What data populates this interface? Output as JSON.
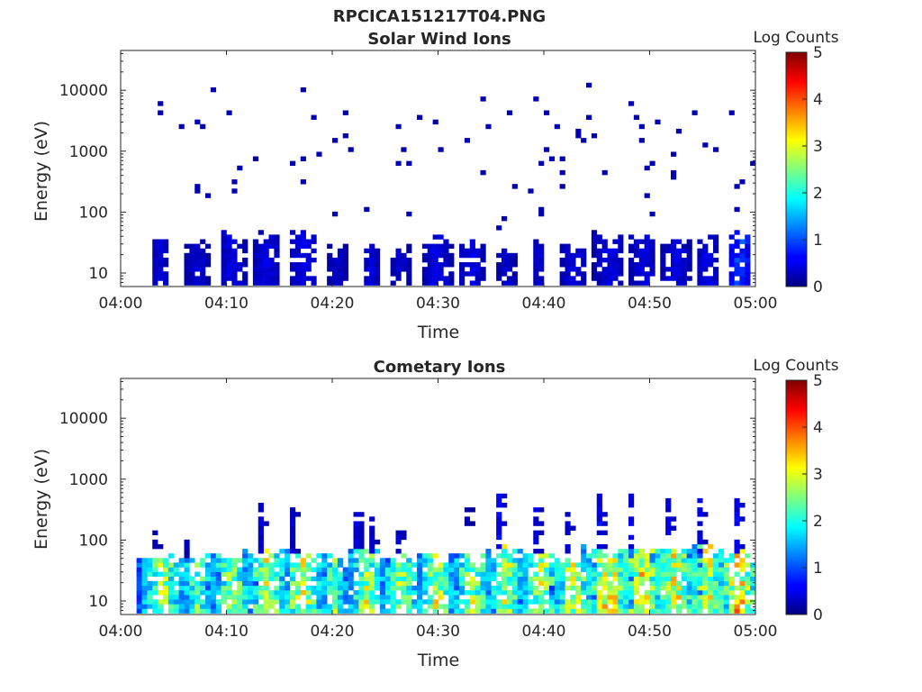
{
  "figure": {
    "title": "RPCICA151217T04.PNG"
  },
  "colorbar": {
    "label": "Log Counts",
    "ticks": [
      "0",
      "1",
      "2",
      "3",
      "4",
      "5"
    ],
    "range": [
      0,
      5
    ],
    "colormap": "jet"
  },
  "chart_data": [
    {
      "type": "heatmap",
      "title": "Solar Wind Ions",
      "xlabel": "Time",
      "ylabel": "Energy (eV)",
      "yscale": "log",
      "ylim": [
        6,
        45000
      ],
      "xlim_minutes": [
        0,
        60
      ],
      "x_tick_labels": [
        "04:00",
        "04:10",
        "04:20",
        "04:30",
        "04:40",
        "04:50",
        "05:00"
      ],
      "y_tick_labels": [
        "10",
        "100",
        "1000",
        "10000"
      ],
      "color_scale": "Log Counts",
      "x_units": "minutes after 04:00",
      "bursts": [
        {
          "t": 3.8,
          "w": 0.9,
          "emax": 30,
          "v": 0.3
        },
        {
          "t": 7.3,
          "w": 1.1,
          "emax": 25,
          "v": 0.3
        },
        {
          "t": 10.6,
          "w": 1.2,
          "emax": 35,
          "v": 0.35
        },
        {
          "t": 13.8,
          "w": 1.4,
          "emax": 35,
          "v": 0.35
        },
        {
          "t": 17.3,
          "w": 1.4,
          "emax": 38,
          "v": 0.35
        },
        {
          "t": 20.4,
          "w": 0.9,
          "emax": 22,
          "v": 0.3
        },
        {
          "t": 23.7,
          "w": 0.9,
          "emax": 22,
          "v": 0.3
        },
        {
          "t": 26.5,
          "w": 0.8,
          "emax": 22,
          "v": 0.3
        },
        {
          "t": 29.9,
          "w": 1.4,
          "emax": 30,
          "v": 0.35
        },
        {
          "t": 33.2,
          "w": 1.3,
          "emax": 28,
          "v": 0.35
        },
        {
          "t": 36.5,
          "w": 0.8,
          "emax": 20,
          "v": 0.3
        },
        {
          "t": 39.6,
          "w": 0.6,
          "emax": 30,
          "v": 0.3
        },
        {
          "t": 42.9,
          "w": 1.2,
          "emax": 25,
          "v": 0.35
        },
        {
          "t": 46.2,
          "w": 1.5,
          "emax": 35,
          "v": 0.35
        },
        {
          "t": 49.4,
          "w": 1.3,
          "emax": 35,
          "v": 0.35
        },
        {
          "t": 52.5,
          "w": 1.4,
          "emax": 32,
          "v": 0.35
        },
        {
          "t": 55.5,
          "w": 1.2,
          "emax": 35,
          "v": 0.35
        },
        {
          "t": 58.6,
          "w": 1.1,
          "emax": 35,
          "v": 0.7
        }
      ],
      "scatter": [
        [
          3.6,
          6200
        ],
        [
          3.6,
          4400
        ],
        [
          5.6,
          2700
        ],
        [
          7.2,
          2800
        ],
        [
          7.6,
          2500
        ],
        [
          8.8,
          10800
        ],
        [
          10.3,
          4500
        ],
        [
          7.0,
          250
        ],
        [
          7.3,
          220
        ],
        [
          8.4,
          180
        ],
        [
          10.9,
          210
        ],
        [
          10.9,
          300
        ],
        [
          11.0,
          500
        ],
        [
          12.6,
          750
        ],
        [
          16.2,
          600
        ],
        [
          17.0,
          700
        ],
        [
          17.1,
          320
        ],
        [
          17.4,
          9500
        ],
        [
          18.1,
          3900
        ],
        [
          18.6,
          900
        ],
        [
          20.0,
          1450
        ],
        [
          21.0,
          4500
        ],
        [
          21.4,
          1700
        ],
        [
          21.6,
          1000
        ],
        [
          20.3,
          100
        ],
        [
          23.4,
          110
        ],
        [
          26.1,
          600
        ],
        [
          26.3,
          2400
        ],
        [
          26.5,
          1150
        ],
        [
          27.0,
          600
        ],
        [
          27.4,
          100
        ],
        [
          28.2,
          3500
        ],
        [
          29.8,
          2800
        ],
        [
          30.1,
          1050
        ],
        [
          32.6,
          1600
        ],
        [
          34.0,
          480
        ],
        [
          34.3,
          7400
        ],
        [
          34.9,
          2500
        ],
        [
          35.5,
          60
        ],
        [
          36.0,
          80
        ],
        [
          36.5,
          4200
        ],
        [
          37.4,
          250
        ],
        [
          38.7,
          230
        ],
        [
          39.4,
          7300
        ],
        [
          39.6,
          600
        ],
        [
          39.7,
          120
        ],
        [
          39.9,
          100
        ],
        [
          40.2,
          4200
        ],
        [
          40.4,
          1050
        ],
        [
          40.6,
          700
        ],
        [
          41.3,
          2500
        ],
        [
          41.5,
          450
        ],
        [
          41.7,
          700
        ],
        [
          41.9,
          270
        ],
        [
          43.1,
          2200
        ],
        [
          43.3,
          1800
        ],
        [
          43.6,
          1600
        ],
        [
          44.1,
          13000
        ],
        [
          44.2,
          3600
        ],
        [
          44.7,
          1800
        ],
        [
          45.8,
          420
        ],
        [
          48.1,
          6300
        ],
        [
          48.8,
          3900
        ],
        [
          49.3,
          2500
        ],
        [
          49.4,
          1400
        ],
        [
          49.8,
          180
        ],
        [
          49.9,
          520
        ],
        [
          50.2,
          100
        ],
        [
          50.5,
          3100
        ],
        [
          50.3,
          600
        ],
        [
          52.1,
          970
        ],
        [
          52.3,
          420
        ],
        [
          52.4,
          350
        ],
        [
          52.7,
          2200
        ],
        [
          54.2,
          4300
        ],
        [
          55.3,
          1350
        ],
        [
          56.2,
          1100
        ],
        [
          57.8,
          4500
        ],
        [
          58.0,
          250
        ],
        [
          58.2,
          120
        ],
        [
          58.9,
          300
        ],
        [
          59.7,
          640
        ]
      ]
    },
    {
      "type": "heatmap",
      "title": "Cometary Ions",
      "xlabel": "Time",
      "ylabel": "Energy (eV)",
      "yscale": "log",
      "ylim": [
        6,
        45000
      ],
      "xlim_minutes": [
        0,
        60
      ],
      "x_tick_labels": [
        "04:00",
        "04:10",
        "04:20",
        "04:30",
        "04:40",
        "04:50",
        "05:00"
      ],
      "y_tick_labels": [
        "10",
        "100",
        "1000",
        "10000"
      ],
      "color_scale": "Log Counts",
      "x_units": "minutes after 04:00",
      "bursts": [
        {
          "t": 4.0,
          "w": 2.3,
          "emax": 45,
          "v": 1.8
        },
        {
          "t": 7.3,
          "w": 2.0,
          "emax": 45,
          "v": 1.6
        },
        {
          "t": 10.5,
          "w": 2.3,
          "emax": 45,
          "v": 1.8
        },
        {
          "t": 13.8,
          "w": 2.4,
          "emax": 60,
          "v": 1.9
        },
        {
          "t": 17.2,
          "w": 2.4,
          "emax": 45,
          "v": 1.9
        },
        {
          "t": 20.2,
          "w": 1.5,
          "emax": 45,
          "v": 1.6
        },
        {
          "t": 23.3,
          "w": 2.0,
          "emax": 60,
          "v": 1.8
        },
        {
          "t": 26.5,
          "w": 2.2,
          "emax": 45,
          "v": 1.8
        },
        {
          "t": 29.9,
          "w": 2.0,
          "emax": 45,
          "v": 1.9
        },
        {
          "t": 33.2,
          "w": 2.2,
          "emax": 45,
          "v": 1.8
        },
        {
          "t": 36.5,
          "w": 2.0,
          "emax": 60,
          "v": 1.9
        },
        {
          "t": 39.8,
          "w": 2.2,
          "emax": 45,
          "v": 1.9
        },
        {
          "t": 42.9,
          "w": 2.2,
          "emax": 45,
          "v": 1.9
        },
        {
          "t": 46.1,
          "w": 2.4,
          "emax": 60,
          "v": 2.2
        },
        {
          "t": 49.3,
          "w": 2.4,
          "emax": 60,
          "v": 2.1
        },
        {
          "t": 52.4,
          "w": 2.4,
          "emax": 60,
          "v": 2.0
        },
        {
          "t": 55.5,
          "w": 2.2,
          "emax": 60,
          "v": 2.0
        },
        {
          "t": 58.4,
          "w": 2.2,
          "emax": 60,
          "v": 2.2
        }
      ],
      "plumes": [
        {
          "t": 3.4,
          "emin": 60,
          "emax": 130,
          "v": 0.3
        },
        {
          "t": 6.1,
          "emin": 50,
          "emax": 100,
          "v": 0.3
        },
        {
          "t": 13.2,
          "emin": 60,
          "emax": 450,
          "v": 0.4
        },
        {
          "t": 16.4,
          "emin": 60,
          "emax": 400,
          "v": 0.4
        },
        {
          "t": 22.4,
          "emin": 60,
          "emax": 280,
          "v": 0.5
        },
        {
          "t": 23.5,
          "emin": 60,
          "emax": 240,
          "v": 0.4
        },
        {
          "t": 26.4,
          "emin": 60,
          "emax": 170,
          "v": 0.4
        },
        {
          "t": 32.8,
          "emin": 160,
          "emax": 300,
          "v": 0.2
        },
        {
          "t": 35.9,
          "emin": 60,
          "emax": 540,
          "v": 0.6
        },
        {
          "t": 39.1,
          "emin": 60,
          "emax": 340,
          "v": 0.5
        },
        {
          "t": 42.3,
          "emin": 60,
          "emax": 270,
          "v": 0.4
        },
        {
          "t": 45.4,
          "emin": 60,
          "emax": 620,
          "v": 0.6
        },
        {
          "t": 48.3,
          "emin": 60,
          "emax": 540,
          "v": 0.6
        },
        {
          "t": 51.8,
          "emin": 60,
          "emax": 420,
          "v": 0.5
        },
        {
          "t": 54.9,
          "emin": 60,
          "emax": 420,
          "v": 0.5
        },
        {
          "t": 58.1,
          "emin": 60,
          "emax": 420,
          "v": 0.6
        }
      ]
    }
  ]
}
